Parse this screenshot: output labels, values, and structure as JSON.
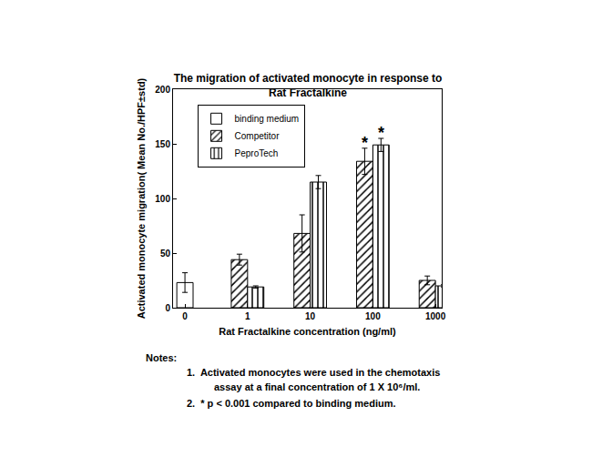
{
  "chart_data": {
    "type": "bar",
    "title": [
      "The migration of activated monocyte in response to",
      "Rat Fractalkine"
    ],
    "x_label": "Rat Fractalkine concentration (ng/ml)",
    "y_label": "Activated monocyte migration( Mean No./HPF±std)",
    "categories": [
      "0",
      "1",
      "10",
      "100",
      "1000"
    ],
    "series": [
      {
        "name": "binding medium",
        "color": "#ffffff",
        "marker": "open",
        "values": [
          23,
          null,
          null,
          null,
          null
        ],
        "errors": [
          9,
          null,
          null,
          null,
          null
        ]
      },
      {
        "name": "Competitor",
        "color": "#ffffff",
        "marker": "hatched",
        "values": [
          null,
          44,
          68,
          134,
          25
        ],
        "errors": [
          null,
          5,
          17,
          12,
          4
        ]
      },
      {
        "name": "PeproTech",
        "color": "#ffffff",
        "marker": "striped",
        "values": [
          null,
          19,
          115,
          149,
          20
        ],
        "errors": [
          null,
          1,
          6,
          6,
          1
        ]
      }
    ],
    "ylim": [
      0,
      200
    ],
    "yticks": [
      0,
      50,
      100,
      150,
      200
    ],
    "grid": false,
    "legend": "upper left",
    "annotations": [
      {
        "text": "*",
        "category": "100",
        "series": "Competitor"
      },
      {
        "text": "*",
        "category": "100",
        "series": "PeproTech"
      }
    ],
    "notes": {
      "title": "Notes:",
      "items": [
        [
          "1.  Activated monocytes were used in the chemotaxis",
          "assay at a final concentration of 1 X 10⁶/ml."
        ],
        [
          "2.  * p < 0.001 compared to binding medium."
        ]
      ]
    }
  }
}
